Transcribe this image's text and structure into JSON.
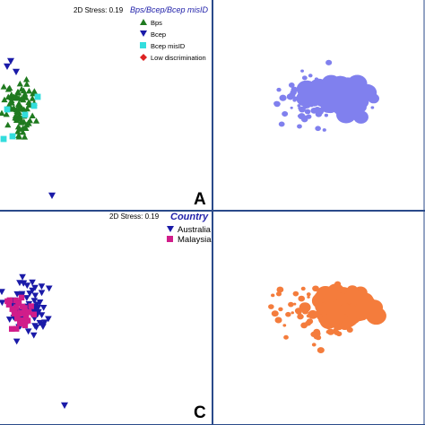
{
  "panels": {
    "A": {
      "label": "A",
      "stress": "2D Stress: 0.19",
      "legend_title": "Bps/Bcep/Bcep misID",
      "legend": [
        {
          "label": "Bps",
          "marker": "triangle-up",
          "color": "#1f7a1f"
        },
        {
          "label": "Bcep",
          "marker": "triangle-down",
          "color": "#1a1aa8"
        },
        {
          "label": "Bcep misID",
          "marker": "square",
          "color": "#33dddd"
        },
        {
          "label": "Low discrimination",
          "marker": "diamond",
          "color": "#dd2222"
        }
      ]
    },
    "B": {
      "dot_color": "#8080ee"
    },
    "C": {
      "label": "C",
      "stress": "2D Stress: 0.19",
      "legend_title": "Country",
      "legend": [
        {
          "label": "Australia",
          "marker": "triangle-down",
          "color": "#1a1aa8"
        },
        {
          "label": "Malaysia",
          "marker": "square",
          "color": "#d11d8a"
        }
      ]
    },
    "D": {
      "dot_color": "#f47c3c"
    }
  },
  "chart_data": [
    {
      "panel": "A",
      "type": "scatter",
      "title": "",
      "xlabel": "",
      "ylabel": "",
      "series": [
        {
          "name": "Bps",
          "approx_count": 70
        },
        {
          "name": "Bcep",
          "approx_count": 4
        },
        {
          "name": "Bcep misID",
          "approx_count": 6
        },
        {
          "name": "Low discrimination",
          "approx_count": 0
        }
      ]
    },
    {
      "panel": "B",
      "type": "scatter",
      "title": "",
      "approx_count": 230
    },
    {
      "panel": "C",
      "type": "scatter",
      "title": "",
      "series": [
        {
          "name": "Australia",
          "approx_count": 70
        },
        {
          "name": "Malaysia",
          "approx_count": 30
        }
      ]
    },
    {
      "panel": "D",
      "type": "scatter",
      "title": "",
      "approx_count": 230
    }
  ]
}
